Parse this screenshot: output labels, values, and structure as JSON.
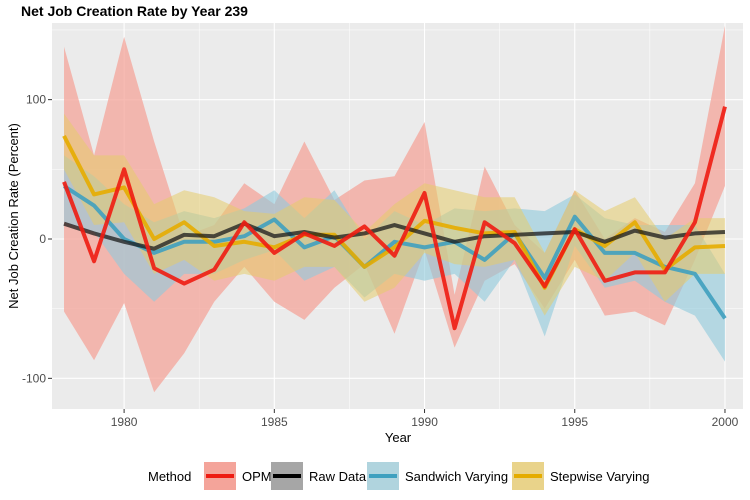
{
  "chart_data": {
    "type": "line",
    "title": "Net Job Creation Rate by Year 239",
    "xlabel": "Year",
    "ylabel": "Net Job Creation Rate (Percent)",
    "xlim": [
      1977.6,
      2000.6
    ],
    "ylim": [
      -122,
      155
    ],
    "x_ticks": [
      1980,
      1985,
      1990,
      1995,
      2000
    ],
    "x_tick_labels": [
      "1980",
      "1985",
      "1990",
      "1995",
      "2000"
    ],
    "y_ticks": [
      -100,
      0,
      100
    ],
    "y_tick_labels": [
      "-100",
      "0",
      "100"
    ],
    "grid": true,
    "legend": {
      "title": "Method",
      "position": "bottom",
      "entries": [
        "OPM",
        "Raw Data",
        "Sandwich Varying",
        "Stepwise Varying"
      ]
    },
    "x": [
      1978,
      1979,
      1980,
      1981,
      1982,
      1983,
      1984,
      1985,
      1986,
      1987,
      1988,
      1989,
      1990,
      1991,
      1992,
      1993,
      1994,
      1995,
      1996,
      1997,
      1998,
      1999,
      2000
    ],
    "series": [
      {
        "name": "OPM",
        "color": "#ee1c12",
        "fill": "#f4a49a",
        "fill_opacity": 0.75,
        "values": [
          41,
          -16,
          50,
          -21,
          -32,
          -22,
          12,
          -10,
          4,
          -5,
          9,
          -12,
          33,
          -64,
          12,
          -3,
          -34,
          7,
          -30,
          -24,
          -24,
          12,
          95
        ],
        "upper": [
          138,
          60,
          145,
          70,
          2,
          10,
          40,
          25,
          70,
          28,
          42,
          45,
          84,
          -40,
          52,
          10,
          -10,
          35,
          0,
          15,
          5,
          40,
          153
        ],
        "lower": [
          -52,
          -87,
          -46,
          -110,
          -82,
          -45,
          -20,
          -45,
          -58,
          -35,
          -18,
          -68,
          -8,
          -78,
          -30,
          -18,
          -50,
          -15,
          -55,
          -52,
          -62,
          -15,
          38
        ]
      },
      {
        "name": "Raw Data",
        "color": "#1a1a1a",
        "fill": "#888888",
        "fill_opacity": 0.35,
        "values": [
          11,
          4,
          -2,
          -7,
          3,
          2,
          11,
          2,
          5,
          1,
          4,
          10,
          4,
          -2,
          2,
          3,
          4,
          5,
          -2,
          6,
          1,
          4,
          5
        ],
        "upper": [],
        "lower": []
      },
      {
        "name": "Sandwich Varying",
        "color": "#3fa0bf",
        "fill": "#90c9dc",
        "fill_opacity": 0.6,
        "values": [
          38,
          24,
          0,
          -10,
          -2,
          -2,
          2,
          14,
          -6,
          2,
          -20,
          -2,
          -6,
          -2,
          -15,
          4,
          -28,
          16,
          -10,
          -10,
          -20,
          -25,
          -57
        ],
        "upper": [
          60,
          45,
          25,
          12,
          20,
          15,
          22,
          35,
          15,
          35,
          0,
          20,
          10,
          22,
          20,
          22,
          20,
          32,
          15,
          10,
          10,
          10,
          -25
        ],
        "lower": [
          12,
          5,
          -25,
          -45,
          -25,
          -25,
          -15,
          -8,
          -30,
          -20,
          -42,
          -25,
          -30,
          -25,
          -45,
          -15,
          -70,
          -5,
          -35,
          -30,
          -45,
          -55,
          -88
        ]
      },
      {
        "name": "Stepwise Varying",
        "color": "#e5ac00",
        "fill": "#e6cc6b",
        "fill_opacity": 0.55,
        "values": [
          74,
          32,
          37,
          0,
          12,
          -5,
          -2,
          -6,
          3,
          3,
          -20,
          -6,
          13,
          8,
          4,
          5,
          -35,
          7,
          -5,
          12,
          -22,
          -6,
          -5
        ],
        "upper": [
          90,
          60,
          60,
          25,
          35,
          30,
          20,
          18,
          30,
          28,
          5,
          25,
          40,
          35,
          30,
          30,
          -10,
          35,
          20,
          30,
          0,
          15,
          15
        ],
        "lower": [
          50,
          10,
          12,
          -25,
          -15,
          -30,
          -25,
          -30,
          -20,
          -20,
          -45,
          -35,
          -10,
          -18,
          -20,
          -15,
          -55,
          -20,
          -30,
          -10,
          -45,
          -25,
          -25
        ]
      }
    ]
  }
}
